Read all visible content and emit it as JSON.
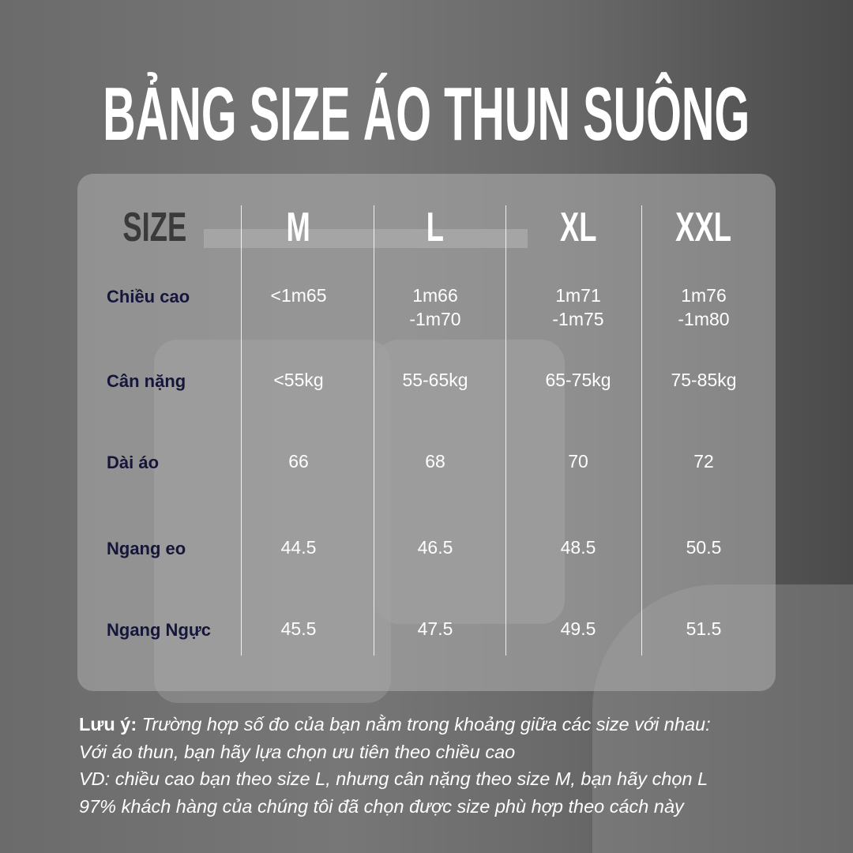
{
  "title": "BẢNG SIZE ÁO THUN SUÔNG",
  "table": {
    "header_label": "SIZE",
    "sizes": [
      "M",
      "L",
      "XL",
      "XXL"
    ],
    "rows": [
      {
        "label": "Chiều cao",
        "values": [
          [
            "<1m65",
            ""
          ],
          [
            "1m66",
            "-1m70"
          ],
          [
            "1m71",
            "-1m75"
          ],
          [
            "1m76",
            "-1m80"
          ]
        ]
      },
      {
        "label": "Cân nặng",
        "values": [
          [
            "<55kg"
          ],
          [
            "55-65kg"
          ],
          [
            "65-75kg"
          ],
          [
            "75-85kg"
          ]
        ]
      },
      {
        "label": "Dài áo",
        "values": [
          [
            "66"
          ],
          [
            "68"
          ],
          [
            "70"
          ],
          [
            "72"
          ]
        ]
      },
      {
        "label": "Ngang eo",
        "values": [
          [
            "44.5"
          ],
          [
            "46.5"
          ],
          [
            "48.5"
          ],
          [
            "50.5"
          ]
        ]
      },
      {
        "label": "Ngang Ngực",
        "values": [
          [
            "45.5"
          ],
          [
            "47.5"
          ],
          [
            "49.5"
          ],
          [
            "51.5"
          ]
        ]
      }
    ]
  },
  "note": {
    "prefix": "Lưu ý:",
    "line1": " Trường hợp số đo của bạn nằm trong khoảng giữa các size với nhau:",
    "line2": "Với áo thun, bạn hãy lựa chọn ưu tiên theo chiều cao",
    "line3": "VD: chiều cao bạn theo size L, nhưng cân nặng theo size M, bạn hãy chọn L",
    "line4": "97% khách hàng của chúng tôi đã chọn được size phù hợp theo cách này"
  }
}
